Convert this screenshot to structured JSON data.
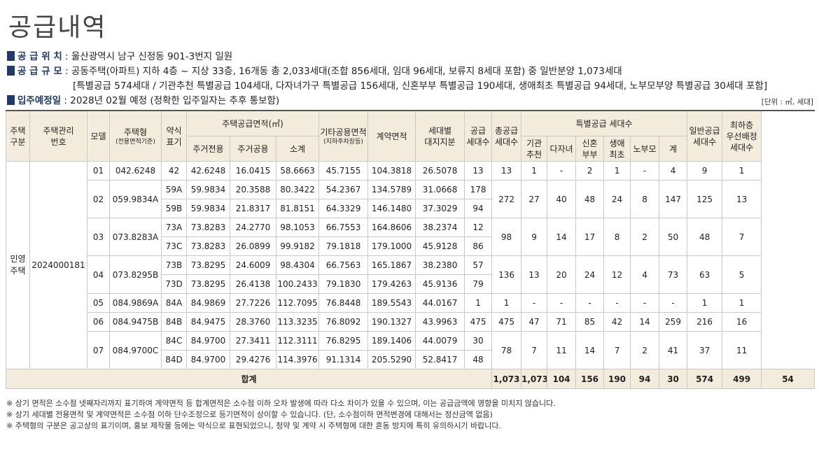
{
  "title": "공급내역",
  "info": {
    "location_label": "공 급 위 치",
    "location_value": " : 울산광역시 남구 신정동 901-3번지 일원",
    "scale_label": "공 급 규 모",
    "scale_value": " : 공동주택(아파트) 지하 4층 ~ 지상 33층, 16개동 총 2,033세대(조합 856세대, 임대 96세대, 보류지 8세대 포함) 중 일반분양 1,073세대",
    "scale_detail": "[특별공급 574세대 / 기관추천 특별공급 104세대, 다자녀가구 특별공급 156세대, 신혼부부 특별공급 190세대, 생애최초 특별공급 94세대, 노부모부양 특별공급 30세대 포함]",
    "movein_label": "입주예정일",
    "movein_value": " : 2028년 02월 예정 (정확한 입주일자는 추후 통보함)",
    "unit_note": "[단위 : ㎡, 세대]"
  },
  "headers": {
    "type_group": "주택\n구분",
    "mgmt_no": "주택관리\n번호",
    "model": "모델",
    "housing_type": "주택형",
    "housing_type_sub": "(전용면적기준)",
    "abbr": "약식\n표기",
    "supply_area": "주택공급면적(㎡)",
    "private_area": "주거전용",
    "common_area": "주거공용",
    "subtotal": "소계",
    "other_common": "기타공용면적",
    "other_common_sub": "(지하주차장등)",
    "contract_area": "계약면적",
    "land_share": "세대별\n대지지분",
    "supply_units": "공급\n세대수",
    "total_supply": "총공급\n세대수",
    "special_supply": "특별공급 세대수",
    "institution": "기관\n추천",
    "multichild": "다자녀",
    "newlywed": "신혼\n부부",
    "firsttime": "생애\n최초",
    "elderly": "노부모",
    "special_total": "계",
    "general": "일반공급\n세대수",
    "top_floor": "최하층\n우선배정\n세대수"
  },
  "type_group_value": "민영\n주택",
  "mgmt_no_value": "2024000181",
  "groups": [
    {
      "model": "01",
      "type": "042.6248",
      "total": "13",
      "inst": "1",
      "multi": "-",
      "newly": "2",
      "first": "1",
      "elder": "-",
      "sp_total": "4",
      "general": "9",
      "top": "1",
      "rows": [
        {
          "abbr": "42",
          "private": "42.6248",
          "common": "16.0415",
          "subtotal": "58.6663",
          "other": "45.7155",
          "contract": "104.3818",
          "land": "26.5078",
          "units": "13"
        }
      ]
    },
    {
      "model": "02",
      "type": "059.9834A",
      "total": "272",
      "inst": "27",
      "multi": "40",
      "newly": "48",
      "first": "24",
      "elder": "8",
      "sp_total": "147",
      "general": "125",
      "top": "13",
      "rows": [
        {
          "abbr": "59A",
          "private": "59.9834",
          "common": "20.3588",
          "subtotal": "80.3422",
          "other": "54.2367",
          "contract": "134.5789",
          "land": "31.0668",
          "units": "178"
        },
        {
          "abbr": "59B",
          "private": "59.9834",
          "common": "21.8317",
          "subtotal": "81.8151",
          "other": "64.3329",
          "contract": "146.1480",
          "land": "37.3029",
          "units": "94"
        }
      ]
    },
    {
      "model": "03",
      "type": "073.8283A",
      "total": "98",
      "inst": "9",
      "multi": "14",
      "newly": "17",
      "first": "8",
      "elder": "2",
      "sp_total": "50",
      "general": "48",
      "top": "7",
      "rows": [
        {
          "abbr": "73A",
          "private": "73.8283",
          "common": "24.2770",
          "subtotal": "98.1053",
          "other": "66.7553",
          "contract": "164.8606",
          "land": "38.2374",
          "units": "12"
        },
        {
          "abbr": "73C",
          "private": "73.8283",
          "common": "26.0899",
          "subtotal": "99.9182",
          "other": "79.1818",
          "contract": "179.1000",
          "land": "45.9128",
          "units": "86"
        }
      ]
    },
    {
      "model": "04",
      "type": "073.8295B",
      "total": "136",
      "inst": "13",
      "multi": "20",
      "newly": "24",
      "first": "12",
      "elder": "4",
      "sp_total": "73",
      "general": "63",
      "top": "5",
      "rows": [
        {
          "abbr": "73B",
          "private": "73.8295",
          "common": "24.6009",
          "subtotal": "98.4304",
          "other": "66.7563",
          "contract": "165.1867",
          "land": "38.2380",
          "units": "57"
        },
        {
          "abbr": "73D",
          "private": "73.8295",
          "common": "26.4138",
          "subtotal": "100.2433",
          "other": "79.1830",
          "contract": "179.4263",
          "land": "45.9136",
          "units": "79"
        }
      ]
    },
    {
      "model": "05",
      "type": "084.9869A",
      "total": "1",
      "inst": "-",
      "multi": "-",
      "newly": "-",
      "first": "-",
      "elder": "-",
      "sp_total": "-",
      "general": "1",
      "top": "1",
      "rows": [
        {
          "abbr": "84A",
          "private": "84.9869",
          "common": "27.7226",
          "subtotal": "112.7095",
          "other": "76.8448",
          "contract": "189.5543",
          "land": "44.0167",
          "units": "1"
        }
      ]
    },
    {
      "model": "06",
      "type": "084.9475B",
      "total": "475",
      "inst": "47",
      "multi": "71",
      "newly": "85",
      "first": "42",
      "elder": "14",
      "sp_total": "259",
      "general": "216",
      "top": "16",
      "rows": [
        {
          "abbr": "84B",
          "private": "84.9475",
          "common": "28.3760",
          "subtotal": "113.3235",
          "other": "76.8092",
          "contract": "190.1327",
          "land": "43.9963",
          "units": "475"
        }
      ]
    },
    {
      "model": "07",
      "type": "084.9700C",
      "total": "78",
      "inst": "7",
      "multi": "11",
      "newly": "14",
      "first": "7",
      "elder": "2",
      "sp_total": "41",
      "general": "37",
      "top": "11",
      "rows": [
        {
          "abbr": "84C",
          "private": "84.9700",
          "common": "27.3411",
          "subtotal": "112.3111",
          "other": "76.8295",
          "contract": "189.1406",
          "land": "44.0079",
          "units": "30"
        },
        {
          "abbr": "84D",
          "private": "84.9700",
          "common": "29.4276",
          "subtotal": "114.3976",
          "other": "91.1314",
          "contract": "205.5290",
          "land": "52.8417",
          "units": "48"
        }
      ]
    }
  ],
  "total_row": {
    "label": "합계",
    "units": "1,073",
    "total": "1,073",
    "inst": "104",
    "multi": "156",
    "newly": "190",
    "first": "94",
    "elder": "30",
    "sp_total": "574",
    "general": "499",
    "top": "54"
  },
  "notes": [
    "※ 상기 면적은 소수점 넷째자리까지 표기하여 계약면적 등 합계면적은 소수점 이하 오차 발생에 따라 다소 차이가 있을 수 있으며, 이는 공급금액에 영향을 미치지 않습니다.",
    "※ 상기 세대별 전용면적 및 계약면적은 소수점 이하 단수조정으로 등기면적이 상이할 수 있습니다. (단, 소수점이하 면적변경에 대해서는 정산금액 없음)",
    "※ 주택형의 구분은 공고상의 표기이며, 홍보 제작물 등에는 약식으로 표현되었으니, 청약 및 계약 시 주택형에 대한 혼동 방지에 특히 유의하시기 바랍니다."
  ]
}
